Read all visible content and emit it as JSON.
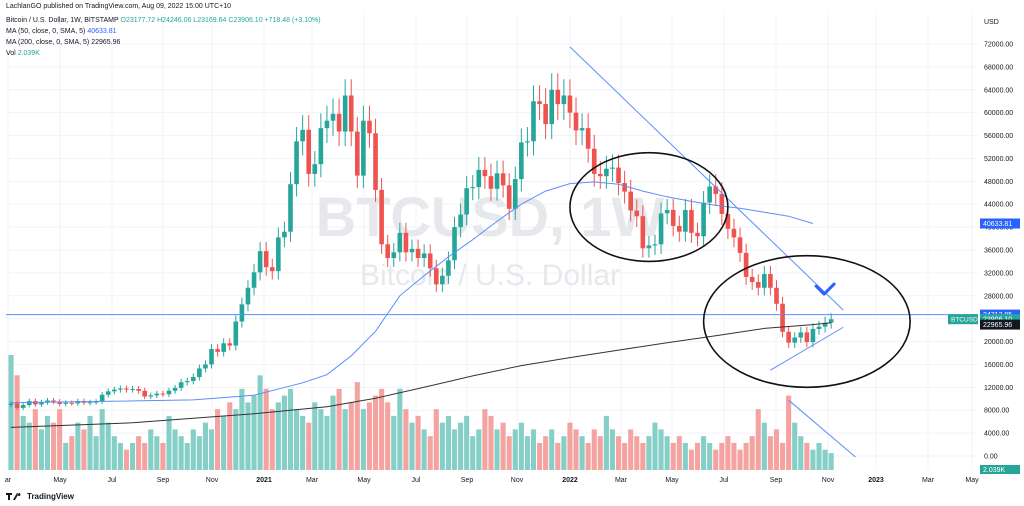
{
  "header": {
    "publish_line": "LachlanGO published on TradingView.com, Aug 09, 2022 15:00 UTC+10",
    "symbol": "Bitcoin / U.S. Dollar, 1W, BITSTAMP",
    "ohlc": "O23177.72  H24246.06  L23169.64  C23906.10  +718.48 (+3.10%)",
    "ma50_label": "MA (50, close, 0, SMA, 5)",
    "ma50_value": "40633.81",
    "ma200_label": "MA (200, close, 0, SMA, 5)",
    "ma200_value": "22965.96",
    "vol_label": "Vol",
    "vol_value": "2.039K"
  },
  "footer": {
    "brand": "TradingView",
    "logo_icon": "tradingview-logo-icon"
  },
  "watermark": {
    "symbol": "BTCUSD, 1W",
    "name": "Bitcoin / U.S. Dollar"
  },
  "colors": {
    "up": "#26a69a",
    "down": "#ef5350",
    "up_vol": "#85cfc6",
    "down_vol": "#f5a3a1",
    "ma50": "#5b8ff9",
    "ma200": "#333333",
    "blue_label": "#2962ff",
    "teal_label": "#26a69a"
  },
  "chart_data": {
    "type": "candlestick",
    "currency": "USD",
    "y_ticks": [
      72000,
      68000,
      64000,
      60000,
      56000,
      52000,
      48000,
      44000,
      40000,
      36000,
      32000,
      28000,
      24000,
      20000,
      16000,
      12000,
      8000,
      4000,
      0
    ],
    "y_tick_labels": [
      "72000.00",
      "68000.00",
      "64000.00",
      "60000.00",
      "56000.00",
      "52000.00",
      "48000.00",
      "44000.00",
      "40000.00",
      "36000.00",
      "32000.00",
      "28000.00",
      "24000.00",
      "20000.00",
      "16000.00",
      "12000.00",
      "8000.00",
      "4000.00",
      "0.00"
    ],
    "x_labels": [
      "ar",
      "May",
      "Jul",
      "Sep",
      "Nov",
      "2021",
      "Mar",
      "May",
      "Jul",
      "Sep",
      "Nov",
      "2022",
      "Mar",
      "May",
      "Jul",
      "Sep",
      "Nov",
      "2023",
      "Mar",
      "May"
    ],
    "x_labels_bold": [
      "2021",
      "2022",
      "2023"
    ],
    "price_labels": [
      {
        "value": 40633.81,
        "text": "40633.81",
        "kind": "ma50"
      },
      {
        "value": 24712.05,
        "text": "24712.05",
        "kind": "line"
      },
      {
        "value": 23906.1,
        "text": "23906.10",
        "tag": "BTCUSD",
        "kind": "last"
      },
      {
        "value": 22965.96,
        "text": "22965.96",
        "kind": "ma200"
      }
    ],
    "volume_last_label": "2.039K",
    "price_series": [
      9200,
      8400,
      8900,
      9600,
      9000,
      9400,
      9700,
      9500,
      9100,
      9300,
      9200,
      9600,
      9300,
      9400,
      9500,
      10700,
      11300,
      11600,
      11800,
      11600,
      11700,
      11400,
      10400,
      10600,
      10900,
      10800,
      11400,
      11900,
      12900,
      13100,
      13800,
      15300,
      16000,
      18700,
      18200,
      19700,
      19300,
      23500,
      26500,
      29400,
      32100,
      35800,
      33000,
      32300,
      38200,
      39200,
      47500,
      55000,
      57000,
      49300,
      51000,
      57300,
      58600,
      59800,
      56700,
      63000,
      56700,
      49000,
      58600,
      56400,
      46500,
      37000,
      34600,
      35600,
      39000,
      35600,
      36200,
      34600,
      35400,
      32800,
      30000,
      31500,
      34200,
      40000,
      42200,
      46800,
      47000,
      50000,
      48900,
      46700,
      49400,
      47300,
      43200,
      48400,
      54800,
      55000,
      62000,
      61500,
      58000,
      64000,
      61500,
      63000,
      60000,
      56900,
      57300,
      53700,
      49300,
      48900,
      50200,
      50400,
      47700,
      46200,
      42900,
      41900,
      36300,
      36800,
      37000,
      42400,
      43000,
      40200,
      39200,
      43000,
      39000,
      38400,
      44300,
      47100,
      45800,
      42300,
      39700,
      38200,
      35500,
      31300,
      30400,
      29400,
      31800,
      29400,
      26600,
      21700,
      19800,
      20700,
      21600,
      19900,
      22200,
      22600,
      23300,
      23900
    ],
    "price_open": 8900,
    "volume_series": [
      17,
      14,
      8,
      7,
      9,
      6,
      8,
      7,
      9,
      4,
      5,
      7,
      6,
      8,
      5,
      9,
      7,
      5,
      4,
      3,
      4,
      5,
      4,
      6,
      5,
      4,
      8,
      6,
      5,
      4,
      6,
      5,
      7,
      6,
      9,
      8,
      10,
      9,
      12,
      10,
      11,
      14,
      12,
      9,
      10,
      11,
      12,
      9,
      8,
      7,
      10,
      9,
      8,
      11,
      12,
      9,
      10,
      13,
      9,
      10,
      11,
      12,
      10,
      8,
      12,
      9,
      7,
      8,
      6,
      5,
      9,
      7,
      8,
      6,
      7,
      8,
      5,
      6,
      9,
      8,
      6,
      7,
      5,
      6,
      7,
      5,
      6,
      4,
      5,
      6,
      4,
      5,
      7,
      6,
      5,
      4,
      6,
      5,
      8,
      6,
      5,
      4,
      6,
      5,
      4,
      5,
      7,
      6,
      5,
      4,
      5,
      4,
      3,
      4,
      5,
      4,
      3,
      4,
      5,
      4,
      3,
      4,
      5,
      9,
      7,
      5,
      6,
      4,
      11,
      7,
      5,
      4,
      3,
      4,
      3,
      2.5
    ],
    "ma50_series": [
      [
        0,
        9300
      ],
      [
        30,
        9800
      ],
      [
        40,
        10600
      ],
      [
        48,
        12800
      ],
      [
        52,
        14200
      ],
      [
        56,
        17500
      ],
      [
        60,
        21800
      ],
      [
        64,
        28000
      ],
      [
        68,
        31500
      ],
      [
        72,
        34800
      ],
      [
        76,
        37800
      ],
      [
        80,
        41000
      ],
      [
        84,
        44000
      ],
      [
        88,
        46300
      ],
      [
        92,
        47600
      ],
      [
        96,
        47900
      ],
      [
        100,
        47500
      ],
      [
        104,
        46300
      ],
      [
        108,
        45300
      ],
      [
        112,
        44500
      ],
      [
        116,
        43800
      ],
      [
        120,
        43300
      ],
      [
        124,
        42600
      ],
      [
        128,
        41900
      ],
      [
        132,
        40633.81
      ]
    ],
    "ma200_series": [
      [
        0,
        5000
      ],
      [
        20,
        5800
      ],
      [
        40,
        7400
      ],
      [
        52,
        8600
      ],
      [
        60,
        10100
      ],
      [
        68,
        12000
      ],
      [
        76,
        14000
      ],
      [
        84,
        15800
      ],
      [
        92,
        17200
      ],
      [
        100,
        18500
      ],
      [
        108,
        19800
      ],
      [
        116,
        21000
      ],
      [
        124,
        22300
      ],
      [
        132,
        22965.96
      ],
      [
        135,
        23300
      ]
    ],
    "annotations": {
      "trendline_down": [
        [
          92,
          71500
        ],
        [
          137,
          25500
        ]
      ],
      "trendline_up": [
        [
          125,
          15000
        ],
        [
          137,
          22500
        ]
      ],
      "volume_trendline": [
        [
          128,
          4300
        ],
        [
          139,
          800
        ]
      ],
      "horizontal_line": 24712.05,
      "checkmark_at": [
        134,
        29000
      ],
      "circles": [
        {
          "cx": 105,
          "cy": 43500,
          "rx": 13,
          "ry": 9500
        },
        {
          "cx": 131,
          "cy": 23500,
          "rx": 17,
          "ry": 11500
        }
      ]
    }
  }
}
